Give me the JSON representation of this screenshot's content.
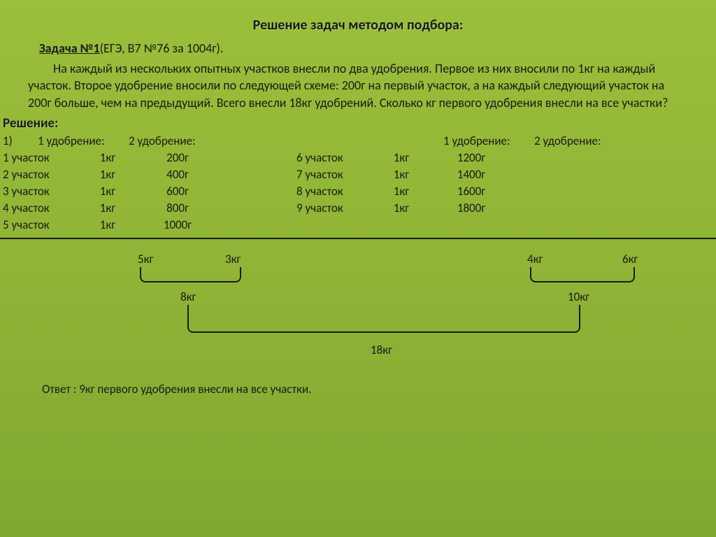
{
  "title": "Решение задач методом подбора:",
  "problem": {
    "label": "Задача №1",
    "ref": "(ЕГЭ, В7 №76 за 1004г).",
    "text": "На каждый из нескольких опытных участков внесли по два удобрения. Первое из них вносили по 1кг на каждый участок. Второе удобрение вносили по следующей схеме: 200г на первый участок, а на каждый следующий участок на 200г больше, чем на предыдущий. Всего внесли 18кг удобрений. Сколько кг первого удобрения внесли на все участки?"
  },
  "solutionLabel": "Решение:",
  "step": "1)",
  "headers": {
    "f1": "1 удобрение:",
    "f2": "2 удобрение:"
  },
  "leftRows": [
    {
      "plot": "1 участок",
      "f1": "1кг",
      "f2": "200г"
    },
    {
      "plot": "2 участок",
      "f1": "1кг",
      "f2": "400г"
    },
    {
      "plot": "3 участок",
      "f1": "1кг",
      "f2": "600г"
    },
    {
      "plot": "4 участок",
      "f1": "1кг",
      "f2": "800г"
    },
    {
      "plot": "5 участок",
      "f1": "1кг",
      "f2": "1000г"
    }
  ],
  "rightRows": [
    {
      "plot": "6 участок",
      "f1": "1кг",
      "f2": "1200г"
    },
    {
      "plot": "7 участок",
      "f1": "1кг",
      "f2": "1400г"
    },
    {
      "plot": "8 участок",
      "f1": "1кг",
      "f2": "1600г"
    },
    {
      "plot": "9 участок",
      "f1": "1кг",
      "f2": "1800г"
    },
    {
      "plot": "",
      "f1": "",
      "f2": ""
    }
  ],
  "sums": {
    "a1": "5кг",
    "a2": "3кг",
    "a3": "4кг",
    "a4": "6кг",
    "b1": "8кг",
    "b2": "10кг",
    "total": "18кг"
  },
  "answer": "Ответ : 9кг первого удобрения внесли на все участки.",
  "colors": {
    "text": "#1a1a1a",
    "divider": "#1a1a1a"
  },
  "font": {
    "family": "Calibri",
    "size_body": 18,
    "size_title": 20
  }
}
